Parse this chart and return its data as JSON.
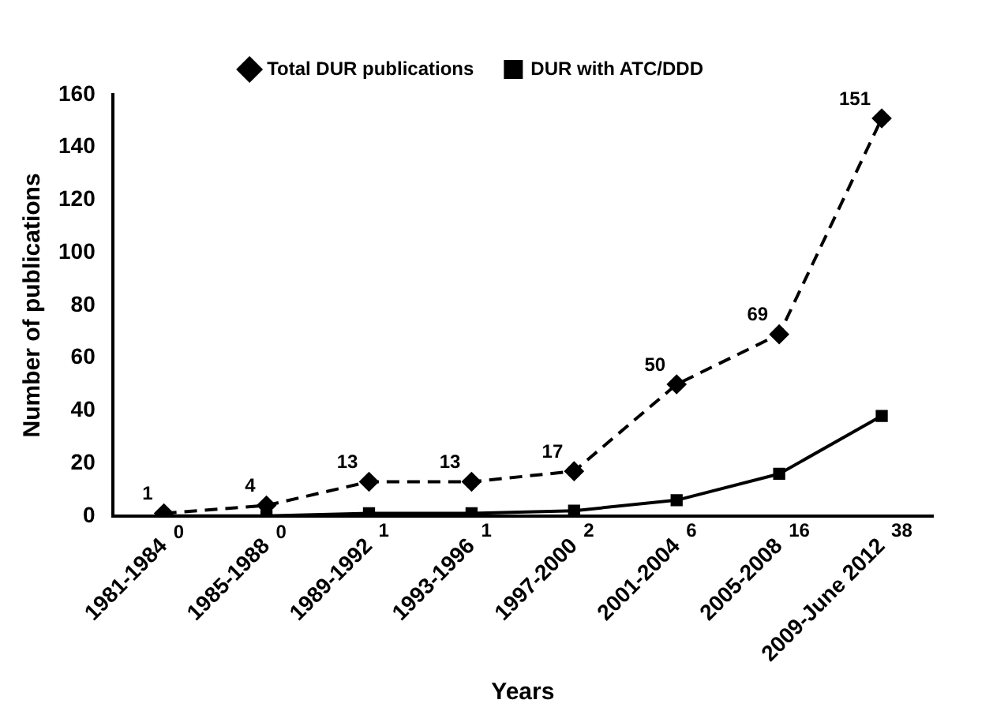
{
  "chart_data": {
    "type": "line",
    "xlabel": "Years",
    "ylabel": "Number of publications",
    "categories": [
      "1981-1984",
      "1985-1988",
      "1989-1992",
      "1993-1996",
      "1997-2000",
      "2001-2004",
      "2005-2008",
      "2009-June 2012"
    ],
    "series": [
      {
        "name": "Total DUR publications",
        "color": "#000000",
        "values": [
          1,
          4,
          13,
          13,
          17,
          50,
          69,
          151
        ],
        "marker": "diamond",
        "line_style": "dashed"
      },
      {
        "name": "DUR with ATC/DDD",
        "color": "#000000",
        "values": [
          0,
          0,
          1,
          1,
          2,
          6,
          16,
          38
        ],
        "marker": "square",
        "line_style": "solid"
      }
    ],
    "ylim": [
      0,
      160
    ],
    "yticks": [
      0,
      20,
      40,
      60,
      80,
      100,
      120,
      140,
      160
    ],
    "grid": false,
    "legend": "top",
    "data_labels": true
  }
}
